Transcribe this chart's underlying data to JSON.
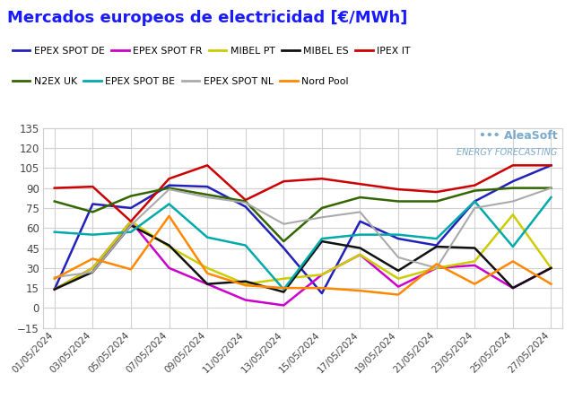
{
  "title": "Mercados europeos de electricidad [€/MWh]",
  "title_color": "#1a1aff",
  "background_color": "#ffffff",
  "grid_color": "#d0d0d0",
  "dates": [
    "01/05/2024",
    "03/05/2024",
    "05/05/2024",
    "07/05/2024",
    "09/05/2024",
    "11/05/2024",
    "13/05/2024",
    "15/05/2024",
    "17/05/2024",
    "19/05/2024",
    "21/05/2024",
    "23/05/2024",
    "25/05/2024",
    "27/05/2024"
  ],
  "ylim": [
    -15,
    135
  ],
  "yticks": [
    -15,
    0,
    15,
    30,
    45,
    60,
    75,
    90,
    105,
    120,
    135
  ],
  "series": {
    "EPEX SPOT DE": {
      "color": "#2222bb",
      "linewidth": 1.8,
      "data": [
        14,
        78,
        75,
        92,
        91,
        76,
        45,
        11,
        65,
        52,
        47,
        80,
        95,
        107
      ]
    },
    "EPEX SPOT FR": {
      "color": "#cc00cc",
      "linewidth": 1.8,
      "data": [
        14,
        30,
        65,
        30,
        18,
        6,
        2,
        25,
        40,
        16,
        30,
        32,
        15,
        30
      ]
    },
    "MIBEL PT": {
      "color": "#cccc00",
      "linewidth": 1.8,
      "data": [
        14,
        30,
        65,
        46,
        30,
        18,
        22,
        25,
        40,
        22,
        30,
        35,
        70,
        30
      ]
    },
    "MIBEL ES": {
      "color": "#111111",
      "linewidth": 1.8,
      "data": [
        14,
        27,
        62,
        47,
        18,
        20,
        12,
        50,
        45,
        28,
        46,
        45,
        15,
        30
      ]
    },
    "IPEX IT": {
      "color": "#cc0000",
      "linewidth": 1.8,
      "data": [
        90,
        91,
        65,
        97,
        107,
        81,
        95,
        97,
        93,
        89,
        87,
        92,
        107,
        107
      ]
    },
    "N2EX UK": {
      "color": "#336600",
      "linewidth": 1.8,
      "data": [
        80,
        72,
        84,
        90,
        85,
        80,
        50,
        75,
        83,
        80,
        80,
        88,
        90,
        90
      ]
    },
    "EPEX SPOT BE": {
      "color": "#00aaaa",
      "linewidth": 1.8,
      "data": [
        57,
        55,
        57,
        78,
        53,
        47,
        14,
        52,
        55,
        55,
        52,
        80,
        46,
        83
      ]
    },
    "EPEX SPOT NL": {
      "color": "#aaaaaa",
      "linewidth": 1.5,
      "data": [
        23,
        27,
        62,
        89,
        83,
        79,
        63,
        68,
        72,
        38,
        30,
        75,
        80,
        90
      ]
    },
    "Nord Pool": {
      "color": "#ff8800",
      "linewidth": 1.8,
      "data": [
        22,
        37,
        29,
        69,
        26,
        17,
        15,
        15,
        13,
        10,
        33,
        18,
        35,
        18
      ]
    }
  },
  "legend_row1": [
    "EPEX SPOT DE",
    "EPEX SPOT FR",
    "MIBEL PT",
    "MIBEL ES",
    "IPEX IT"
  ],
  "legend_row2": [
    "N2EX UK",
    "EPEX SPOT BE",
    "EPEX SPOT NL",
    "Nord Pool"
  ],
  "watermark_line1": "••• AleaSoft",
  "watermark_line2": "ENERGY FORECASTING",
  "watermark_color": "#7aaacc"
}
